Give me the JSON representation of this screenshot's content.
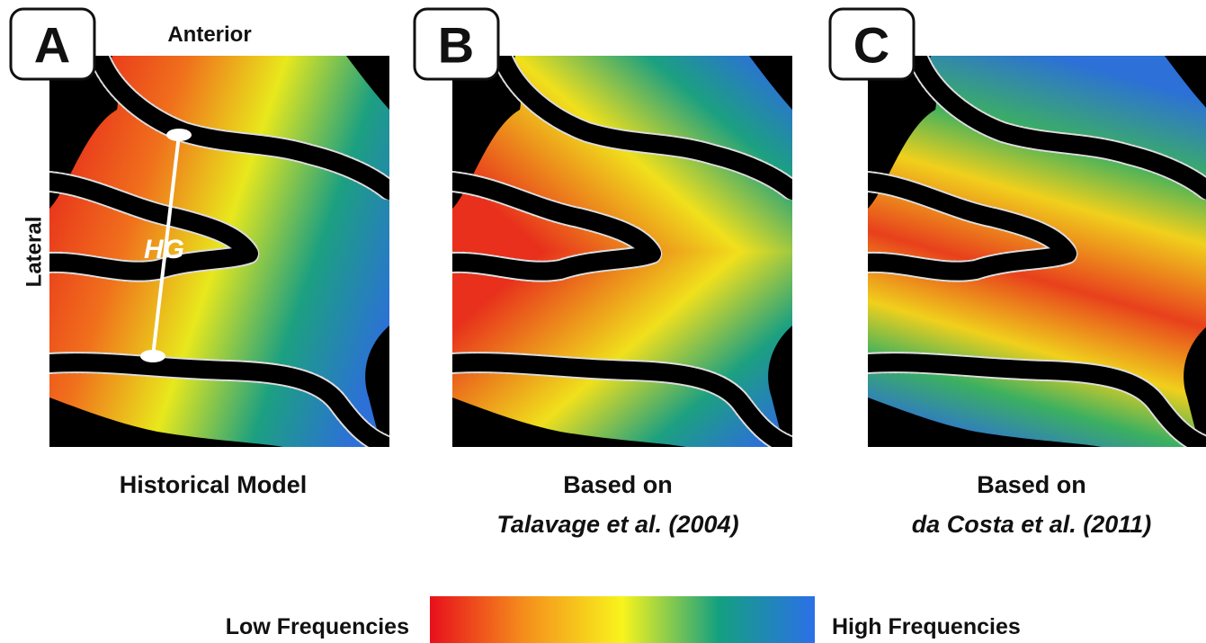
{
  "panels": [
    {
      "letter": "A",
      "caption": [
        "Historical Model"
      ]
    },
    {
      "letter": "B",
      "caption": [
        "Based on",
        "Talavage et al. (2004)"
      ]
    },
    {
      "letter": "C",
      "caption": [
        "Based on",
        "da Costa et al. (2011)"
      ]
    }
  ],
  "labels": {
    "anterior": "Anterior",
    "lateral": "Lateral",
    "hg": "HG"
  },
  "legend": {
    "low": "Low Frequencies",
    "high": "High Frequencies"
  }
}
